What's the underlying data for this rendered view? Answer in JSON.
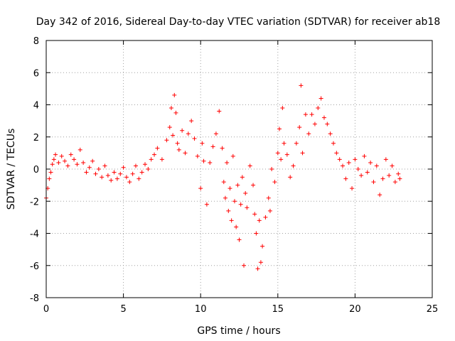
{
  "chart_data": {
    "type": "scatter",
    "title": "Day 342 of 2016, Sidereal Day-to-day VTEC variation (SDTVAR) for receiver ab18",
    "xlabel": "GPS time / hours",
    "ylabel": "SDTVAR / TECUs",
    "xlim": [
      0,
      25
    ],
    "ylim": [
      -8,
      8
    ],
    "x_ticks": [
      "0",
      "5",
      "10",
      "15",
      "20",
      "25"
    ],
    "y_ticks": [
      "-8",
      "-6",
      "-4",
      "-2",
      "0",
      "2",
      "4",
      "6",
      "8"
    ],
    "grid": true,
    "marker": "+",
    "color": "#ff0000",
    "series": [
      {
        "name": "SDTVAR",
        "x": [
          0.0,
          0.1,
          0.2,
          0.3,
          0.4,
          0.5,
          0.6,
          0.8,
          1.0,
          1.2,
          1.4,
          1.6,
          1.8,
          2.0,
          2.2,
          2.4,
          2.6,
          2.8,
          3.0,
          3.2,
          3.4,
          3.6,
          3.8,
          4.0,
          4.2,
          4.4,
          4.6,
          4.8,
          5.0,
          5.2,
          5.4,
          5.6,
          5.8,
          6.0,
          6.2,
          6.4,
          6.6,
          6.8,
          7.0,
          7.2,
          7.5,
          7.8,
          8.0,
          8.1,
          8.2,
          8.3,
          8.4,
          8.5,
          8.6,
          8.8,
          9.0,
          9.2,
          9.4,
          9.6,
          9.8,
          10.0,
          10.1,
          10.2,
          10.4,
          10.6,
          10.8,
          11.0,
          11.2,
          11.4,
          11.5,
          11.6,
          11.7,
          11.8,
          11.9,
          12.0,
          12.1,
          12.2,
          12.3,
          12.4,
          12.5,
          12.6,
          12.7,
          12.8,
          12.9,
          13.0,
          13.2,
          13.4,
          13.5,
          13.6,
          13.7,
          13.8,
          13.9,
          14.0,
          14.2,
          14.4,
          14.5,
          14.6,
          14.8,
          15.0,
          15.1,
          15.2,
          15.3,
          15.4,
          15.6,
          15.8,
          16.0,
          16.2,
          16.4,
          16.5,
          16.6,
          16.8,
          17.0,
          17.2,
          17.4,
          17.6,
          17.8,
          18.0,
          18.2,
          18.4,
          18.6,
          18.8,
          19.0,
          19.2,
          19.4,
          19.6,
          19.8,
          20.0,
          20.2,
          20.4,
          20.6,
          20.8,
          21.0,
          21.2,
          21.4,
          21.6,
          21.8,
          22.0,
          22.2,
          22.4,
          22.6,
          22.8,
          22.9
        ],
        "y": [
          -1.8,
          -1.2,
          -0.6,
          -0.2,
          0.3,
          0.6,
          0.9,
          0.4,
          0.8,
          0.5,
          0.2,
          0.9,
          0.6,
          0.3,
          1.2,
          0.4,
          -0.2,
          0.1,
          0.5,
          -0.3,
          0.0,
          -0.5,
          0.2,
          -0.4,
          -0.7,
          -0.2,
          -0.6,
          -0.3,
          0.1,
          -0.5,
          -0.8,
          -0.3,
          0.2,
          -0.6,
          -0.2,
          0.3,
          0.0,
          0.6,
          0.9,
          1.3,
          0.6,
          1.8,
          2.6,
          3.8,
          2.1,
          4.6,
          3.5,
          1.6,
          1.2,
          2.4,
          1.0,
          2.2,
          3.0,
          1.9,
          0.8,
          -1.2,
          1.6,
          0.5,
          -2.2,
          0.4,
          1.4,
          2.2,
          3.6,
          1.3,
          -0.8,
          -1.8,
          0.4,
          -2.6,
          -1.2,
          -3.2,
          0.8,
          -2.0,
          -3.6,
          -1.0,
          -4.4,
          -2.2,
          -0.5,
          -6.0,
          -1.5,
          -2.4,
          0.2,
          -1.0,
          -2.8,
          -4.0,
          -6.2,
          -3.2,
          -5.8,
          -4.8,
          -3.0,
          -1.8,
          -2.6,
          0.0,
          -0.8,
          1.0,
          2.5,
          0.6,
          3.8,
          1.6,
          0.9,
          -0.5,
          0.2,
          1.6,
          2.6,
          5.2,
          1.0,
          3.4,
          2.2,
          3.4,
          2.8,
          3.8,
          4.4,
          3.2,
          2.8,
          2.2,
          1.6,
          1.0,
          0.6,
          0.2,
          -0.6,
          0.4,
          -1.2,
          0.6,
          0.0,
          -0.4,
          0.8,
          -0.2,
          0.4,
          -0.8,
          0.2,
          -1.6,
          -0.6,
          0.6,
          -0.4,
          0.2,
          -0.8,
          -0.3,
          -0.6
        ]
      }
    ]
  }
}
